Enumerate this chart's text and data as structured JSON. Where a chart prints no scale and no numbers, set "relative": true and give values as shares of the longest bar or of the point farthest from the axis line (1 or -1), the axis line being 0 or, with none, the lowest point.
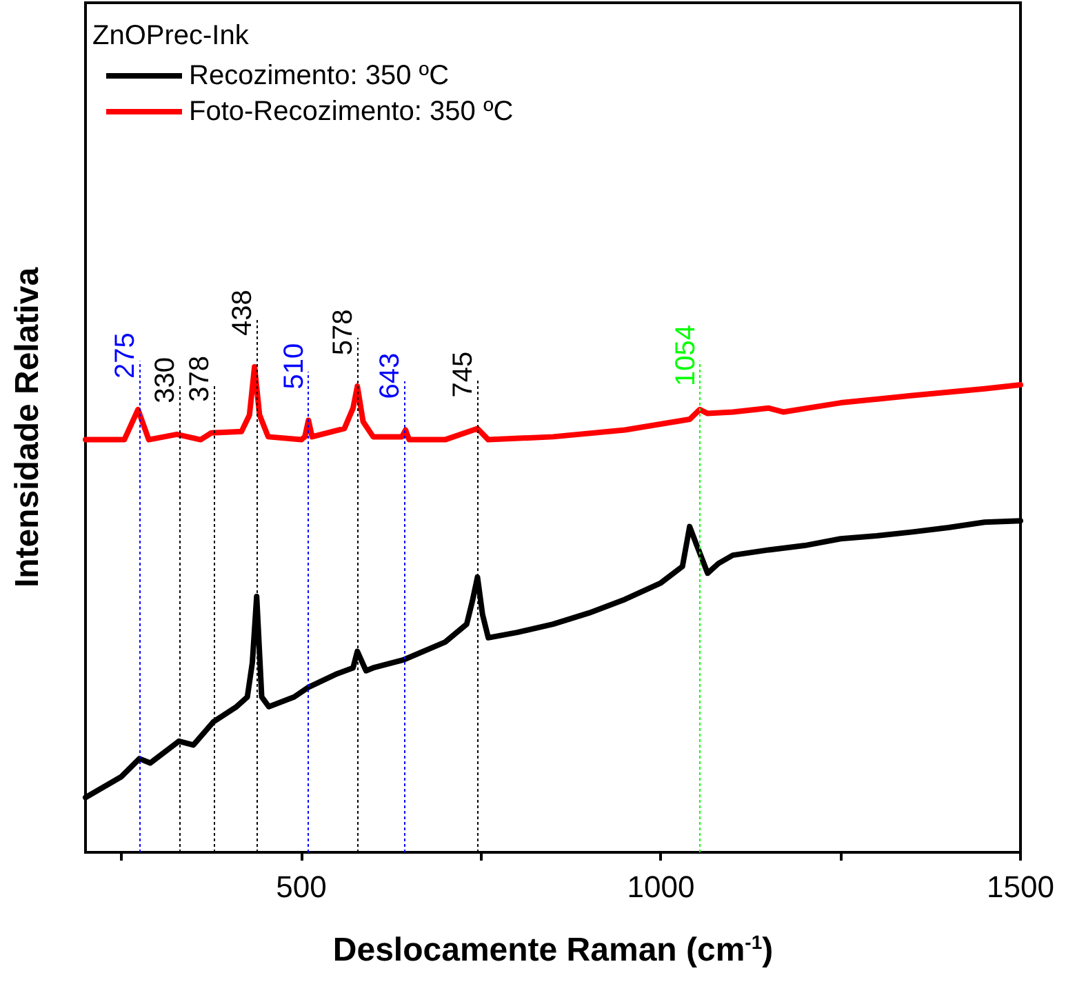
{
  "chart_data": {
    "type": "line",
    "relative": true,
    "legend_title": "ZnOPrec-Ink",
    "legend": "top left",
    "xlabel": "Deslocamente Raman (cm$^{-1}$)",
    "ylabel": "Intensidade Relativa",
    "xlim": [
      200,
      1500
    ],
    "xticks": [
      {
        "value": 250,
        "label": null
      },
      500,
      {
        "value": 750,
        "label": null
      },
      1000,
      {
        "value": 1250,
        "label": null
      },
      1500
    ],
    "grid": false,
    "marker": "none",
    "line_style": "solid",
    "series": [
      {
        "name": "Recozimento: 350 ºC",
        "color": "#000000",
        "x": [
          200,
          250,
          275,
          290,
          330,
          350,
          378,
          410,
          425,
          432,
          438,
          445,
          455,
          490,
          510,
          550,
          572,
          578,
          590,
          600,
          643,
          700,
          730,
          738,
          745,
          752,
          760,
          800,
          850,
          900,
          950,
          1000,
          1030,
          1040,
          1050,
          1065,
          1080,
          1100,
          1150,
          1200,
          1250,
          1300,
          1350,
          1400,
          1450,
          1500
        ],
        "values": [
          0.113,
          0.156,
          0.193,
          0.184,
          0.229,
          0.221,
          0.269,
          0.3,
          0.32,
          0.391,
          0.527,
          0.32,
          0.3,
          0.32,
          0.34,
          0.368,
          0.38,
          0.414,
          0.374,
          0.38,
          0.397,
          0.433,
          0.47,
          0.518,
          0.567,
          0.49,
          0.442,
          0.453,
          0.47,
          0.493,
          0.521,
          0.555,
          0.589,
          0.671,
          0.632,
          0.575,
          0.595,
          0.612,
          0.623,
          0.632,
          0.646,
          0.652,
          0.66,
          0.669,
          0.68,
          0.683
        ]
      },
      {
        "name": "Foto-Recozimento: 350 ºC",
        "color": "#ff0000",
        "x": [
          200,
          254,
          273,
          288,
          327,
          360,
          375,
          417,
          428,
          435,
          442,
          454,
          500,
          505,
          510,
          515,
          560,
          572,
          578,
          586,
          600,
          640,
          645,
          650,
          700,
          745,
          760,
          850,
          950,
          1040,
          1054,
          1065,
          1100,
          1150,
          1170,
          1250,
          1350,
          1450,
          1500
        ],
        "values": [
          0.85,
          0.85,
          0.912,
          0.85,
          0.861,
          0.85,
          0.864,
          0.867,
          0.901,
          1,
          0.901,
          0.856,
          0.85,
          0.856,
          0.89,
          0.856,
          0.873,
          0.915,
          0.96,
          0.887,
          0.856,
          0.856,
          0.87,
          0.85,
          0.85,
          0.873,
          0.85,
          0.856,
          0.87,
          0.892,
          0.912,
          0.904,
          0.907,
          0.915,
          0.907,
          0.926,
          0.941,
          0.955,
          0.963
        ]
      }
    ],
    "ref_lines": [
      {
        "axis": "x",
        "value": 275,
        "label": "275",
        "color": "#0000ff",
        "line_style": "dotted"
      },
      {
        "axis": "x",
        "value": 330,
        "label": "330",
        "color": "#000000",
        "line_style": "dotted"
      },
      {
        "axis": "x",
        "value": 378,
        "label": "378",
        "color": "#000000",
        "line_style": "dotted"
      },
      {
        "axis": "x",
        "value": 438,
        "label": "438",
        "color": "#000000",
        "line_style": "dotted"
      },
      {
        "axis": "x",
        "value": 510,
        "label": "510",
        "color": "#0000ff",
        "line_style": "dotted"
      },
      {
        "axis": "x",
        "value": 578,
        "label": "578",
        "color": "#000000",
        "line_style": "dotted"
      },
      {
        "axis": "x",
        "value": 643,
        "label": "643",
        "color": "#0000ff",
        "line_style": "dotted"
      },
      {
        "axis": "x",
        "value": 745,
        "label": "745",
        "color": "#000000",
        "line_style": "dotted"
      },
      {
        "axis": "x",
        "value": 1054,
        "label": "1054",
        "color": "#00ff00",
        "line_style": "dotted"
      }
    ]
  }
}
